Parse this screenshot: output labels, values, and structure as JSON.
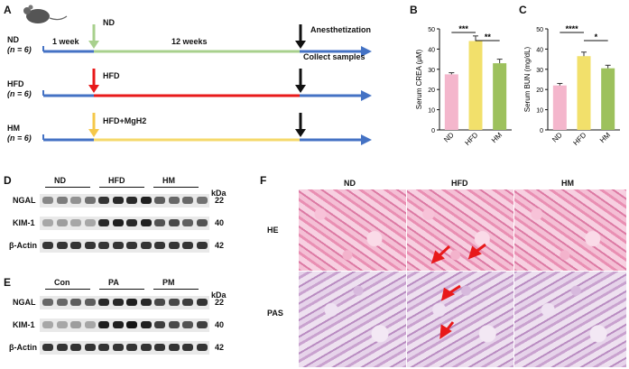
{
  "panels": {
    "A": "A",
    "B": "B",
    "C": "C",
    "D": "D",
    "E": "E",
    "F": "F"
  },
  "timeline": {
    "groups": [
      {
        "name": "ND",
        "n": "(n = 6)",
        "diet": "ND",
        "color": "#a8d08d",
        "arrow": "#a8d08d"
      },
      {
        "name": "HFD",
        "n": "(n = 6)",
        "diet": "HFD",
        "color": "#e8191a",
        "arrow": "#e8191a"
      },
      {
        "name": "HM",
        "n": "(n = 6)",
        "diet": "HFD+MgH2",
        "color": "#f5d96b",
        "arrow": "#f5c84a"
      }
    ],
    "week1": "1 week",
    "weeks12": "12 weeks",
    "anesth": "Anesthetization",
    "collect": "Collect samples",
    "baseline_color": "#4472c4"
  },
  "chart_data": [
    {
      "type": "bar",
      "id": "B",
      "categories": [
        "ND",
        "HFD",
        "HM"
      ],
      "values": [
        27.5,
        44,
        33
      ],
      "errors": [
        0.8,
        2.5,
        2
      ],
      "colors": [
        "#f4b6cc",
        "#f2e06b",
        "#9dc15d"
      ],
      "ylabel": "Serum CREA (μM)",
      "ylim": [
        0,
        50
      ],
      "yticks": [
        0,
        10,
        20,
        30,
        40,
        50
      ],
      "sig": [
        {
          "from": 0,
          "to": 1,
          "label": "***"
        },
        {
          "from": 1,
          "to": 2,
          "label": "**"
        }
      ]
    },
    {
      "type": "bar",
      "id": "C",
      "categories": [
        "ND",
        "HFD",
        "HM"
      ],
      "values": [
        22,
        36.5,
        30.5
      ],
      "errors": [
        1,
        2,
        1.5
      ],
      "colors": [
        "#f4b6cc",
        "#f2e06b",
        "#9dc15d"
      ],
      "ylabel": "Serum BUN (mg/dL)",
      "ylim": [
        0,
        50
      ],
      "yticks": [
        0,
        10,
        20,
        30,
        40,
        50
      ],
      "sig": [
        {
          "from": 0,
          "to": 1,
          "label": "****"
        },
        {
          "from": 1,
          "to": 2,
          "label": "*"
        }
      ]
    }
  ],
  "blotD": {
    "groups": [
      "ND",
      "HFD",
      "HM"
    ],
    "kda": "kDa",
    "rows": [
      {
        "name": "NGAL",
        "kda": "22",
        "int": [
          0.45,
          0.5,
          0.4,
          0.55,
          0.85,
          0.9,
          0.9,
          0.95,
          0.65,
          0.6,
          0.6,
          0.55
        ]
      },
      {
        "name": "KIM-1",
        "kda": "40",
        "int": [
          0.3,
          0.35,
          0.3,
          0.3,
          0.9,
          0.95,
          0.9,
          0.95,
          0.7,
          0.75,
          0.65,
          0.7
        ]
      },
      {
        "name": "β-Actin",
        "kda": "42",
        "int": [
          0.85,
          0.85,
          0.85,
          0.85,
          0.85,
          0.85,
          0.85,
          0.85,
          0.85,
          0.85,
          0.85,
          0.85
        ]
      }
    ]
  },
  "blotE": {
    "groups": [
      "Con",
      "PA",
      "PM"
    ],
    "kda": "kDa",
    "rows": [
      {
        "name": "NGAL",
        "kda": "22",
        "int": [
          0.6,
          0.6,
          0.65,
          0.65,
          0.9,
          0.9,
          0.95,
          0.9,
          0.75,
          0.75,
          0.8,
          0.85
        ]
      },
      {
        "name": "KIM-1",
        "kda": "40",
        "int": [
          0.3,
          0.3,
          0.35,
          0.3,
          0.95,
          0.95,
          1,
          0.95,
          0.8,
          0.75,
          0.7,
          0.8
        ]
      },
      {
        "name": "β-Actin",
        "kda": "42",
        "int": [
          0.85,
          0.85,
          0.85,
          0.85,
          0.85,
          0.85,
          0.85,
          0.85,
          0.85,
          0.85,
          0.85,
          0.85
        ]
      }
    ]
  },
  "histo": {
    "cols": [
      "ND",
      "HFD",
      "HM"
    ],
    "rows": [
      "HE",
      "PAS"
    ]
  }
}
